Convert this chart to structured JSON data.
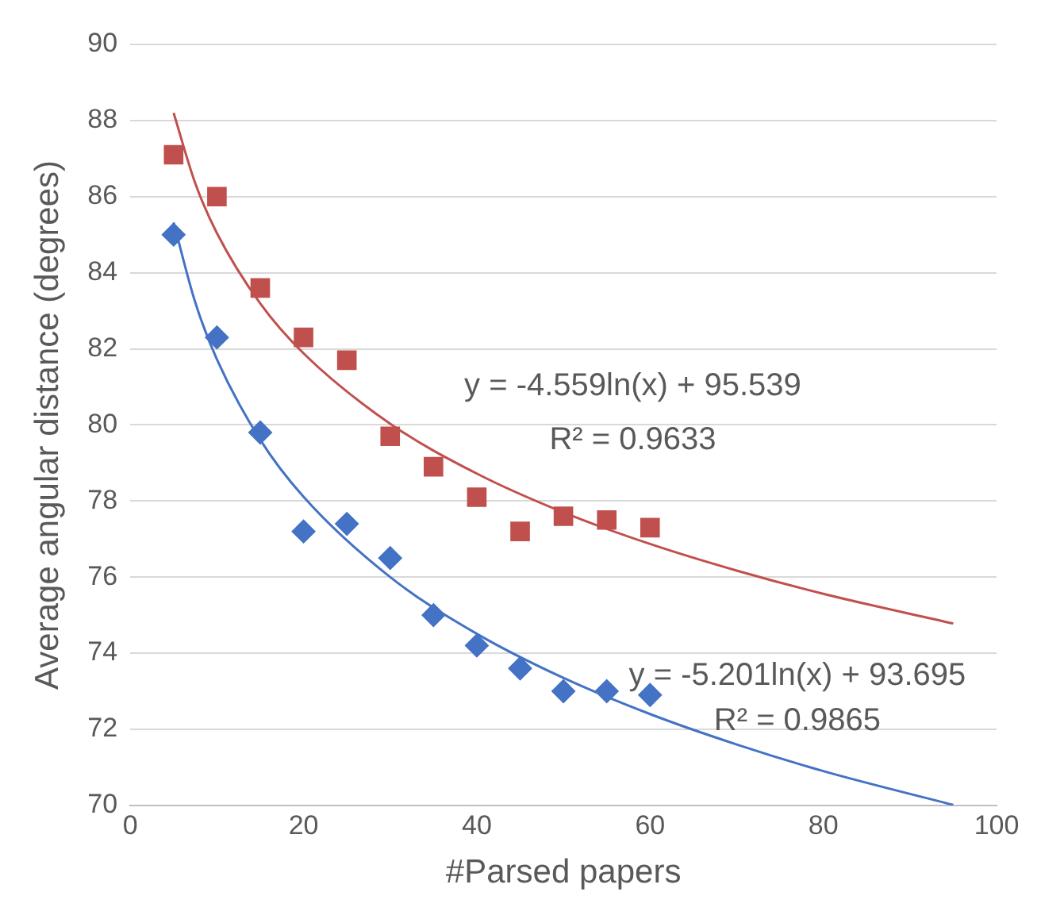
{
  "chart_data": {
    "type": "scatter",
    "xlabel": "#Parsed papers",
    "ylabel": "Average angular distance (degrees)",
    "xlim": [
      0,
      100
    ],
    "xticks": [
      0,
      20,
      40,
      60,
      80,
      100
    ],
    "ylim": [
      70,
      90
    ],
    "yticks": [
      70,
      72,
      74,
      76,
      78,
      80,
      82,
      84,
      86,
      88,
      90
    ],
    "grid": "y",
    "legend": false,
    "series": [
      {
        "type": "line",
        "marker": "none",
        "color": "#c0504d",
        "x": [
          5,
          7.5,
          10,
          15,
          20,
          30,
          40,
          50,
          60,
          70,
          80,
          95
        ],
        "values": [
          88.2,
          86.35,
          85.04,
          83.19,
          81.88,
          80.03,
          78.72,
          77.7,
          76.87,
          76.17,
          75.56,
          74.78
        ]
      },
      {
        "type": "line",
        "marker": "none",
        "color": "#4472c4",
        "x": [
          5,
          7.5,
          10,
          15,
          20,
          30,
          40,
          50,
          60,
          70,
          80,
          95
        ],
        "values": [
          85.32,
          83.22,
          81.72,
          79.61,
          78.11,
          76.0,
          74.51,
          73.35,
          72.4,
          71.6,
          70.9,
          70.01
        ]
      },
      {
        "type": "scatter",
        "marker": "square",
        "color": "#c0504d",
        "x": [
          5,
          10,
          15,
          20,
          25,
          30,
          35,
          40,
          45,
          50,
          55,
          60
        ],
        "values": [
          87.1,
          86.0,
          83.6,
          82.3,
          81.7,
          79.7,
          78.9,
          78.1,
          77.2,
          77.6,
          77.5,
          77.3
        ]
      },
      {
        "type": "scatter",
        "marker": "diamond",
        "color": "#4472c4",
        "x": [
          5,
          10,
          15,
          20,
          25,
          30,
          35,
          40,
          45,
          50,
          55,
          60
        ],
        "values": [
          85.0,
          82.3,
          79.8,
          77.2,
          77.4,
          76.5,
          75.0,
          74.2,
          73.6,
          73.0,
          73.0,
          72.9
        ]
      }
    ],
    "annotations": [
      "y = -4.559ln(x) + 95.539",
      "R² = 0.9633",
      "y = -5.201ln(x) + 93.695",
      "R² = 0.9865"
    ]
  }
}
